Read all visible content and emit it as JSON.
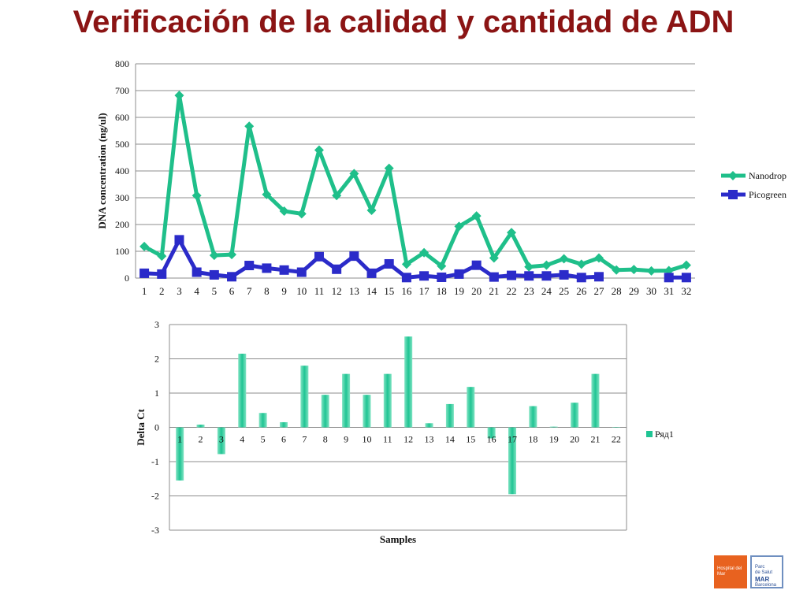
{
  "slide": {
    "title": "Verificación de la calidad y cantidad de ADN"
  },
  "logos": {
    "hospital": "Hospital del Mar",
    "parc": {
      "line1": "Parc",
      "line2": "de Salut",
      "line3": "MAR",
      "line4": "Barcelona"
    }
  },
  "colors": {
    "nanodrop": "#1fbf8a",
    "picogreen": "#2b2bc9",
    "bars": "#1fc493",
    "title": "#8b1414"
  },
  "chart_data": [
    {
      "type": "line",
      "ylabel": "DNA concentration (ng/ul)",
      "xlabel": "",
      "ylim": [
        0,
        800
      ],
      "yticks": [
        0,
        100,
        200,
        300,
        400,
        500,
        600,
        700,
        800
      ],
      "grid": true,
      "legend": "right",
      "categories": [
        "1",
        "2",
        "3",
        "4",
        "5",
        "6",
        "7",
        "8",
        "9",
        "10",
        "11",
        "12",
        "13",
        "14",
        "15",
        "16",
        "17",
        "18",
        "19",
        "20",
        "21",
        "22",
        "23",
        "24",
        "25",
        "26",
        "27",
        "28",
        "29",
        "30",
        "31",
        "32"
      ],
      "series": [
        {
          "name": "Nanodrop",
          "marker": "diamond",
          "values": [
            118,
            82,
            682,
            308,
            85,
            88,
            567,
            312,
            250,
            240,
            478,
            308,
            390,
            253,
            410,
            52,
            95,
            45,
            193,
            232,
            75,
            170,
            42,
            48,
            72,
            52,
            75,
            30,
            32,
            27,
            28,
            48
          ]
        },
        {
          "name": "Picogreen",
          "marker": "square",
          "values": [
            18,
            15,
            143,
            22,
            12,
            5,
            47,
            37,
            30,
            22,
            80,
            33,
            82,
            18,
            53,
            2,
            8,
            3,
            15,
            48,
            4,
            10,
            8,
            8,
            12,
            2,
            5,
            null,
            null,
            null,
            2,
            2
          ]
        }
      ]
    },
    {
      "type": "bar",
      "xlabel": "Samples",
      "ylabel": "Delta Ct",
      "ylim": [
        -3,
        3
      ],
      "yticks": [
        -3,
        -2,
        -1,
        0,
        1,
        2,
        3
      ],
      "grid": true,
      "legend": "right",
      "categories": [
        "1",
        "2",
        "3",
        "4",
        "5",
        "6",
        "7",
        "8",
        "9",
        "10",
        "11",
        "12",
        "13",
        "14",
        "15",
        "16",
        "17",
        "18",
        "19",
        "20",
        "21",
        "22"
      ],
      "series": [
        {
          "name": "Ряд1",
          "values": [
            -1.55,
            0.08,
            -0.78,
            2.15,
            0.42,
            0.15,
            1.8,
            0.95,
            1.56,
            0.95,
            1.56,
            2.65,
            0.12,
            0.68,
            1.18,
            -0.32,
            -1.95,
            0.62,
            0.02,
            0.72,
            1.56,
            0
          ]
        }
      ]
    }
  ]
}
